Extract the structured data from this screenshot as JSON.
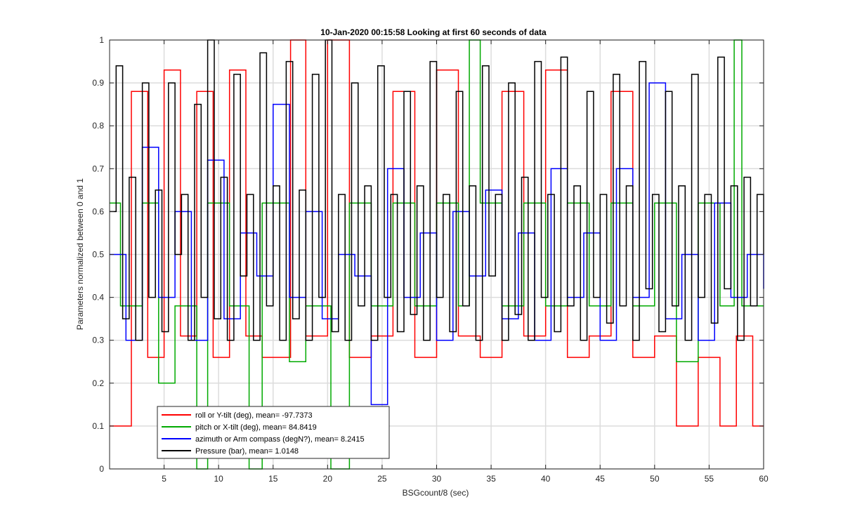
{
  "chart_data": {
    "type": "line",
    "title": "10-Jan-2020 00:15:58 Looking at first 60 seconds of data",
    "xlabel": "BSGcount/8 (sec)",
    "ylabel": "Parameters normalized between 0 and 1",
    "xlim": [
      0,
      60
    ],
    "ylim": [
      0,
      1
    ],
    "xticks": [
      5,
      10,
      15,
      20,
      25,
      30,
      35,
      40,
      45,
      50,
      55,
      60
    ],
    "yticks": [
      0,
      0.1,
      0.2,
      0.3,
      0.4,
      0.5,
      0.6,
      0.7,
      0.8,
      0.9,
      1
    ],
    "grid": true,
    "legend_position": "bottom-left",
    "series": [
      {
        "name": "roll or Y-tilt (deg), mean= -97.7373",
        "color": "#ff0000",
        "x": [
          0,
          2,
          3.5,
          5,
          6.5,
          8,
          9.5,
          11,
          12.5,
          14,
          16.6,
          18,
          20,
          22,
          24,
          26,
          28,
          30,
          32,
          34,
          36,
          38,
          40,
          42,
          44,
          46,
          48,
          50,
          52,
          54,
          56,
          57.5,
          59,
          60
        ],
        "values": [
          0.1,
          0.88,
          0.26,
          0.93,
          0.31,
          0.88,
          0.26,
          0.93,
          0.31,
          0.26,
          1.0,
          0.31,
          1.0,
          0.26,
          0.31,
          0.88,
          0.26,
          0.93,
          0.31,
          0.26,
          0.88,
          0.31,
          0.93,
          0.26,
          0.31,
          0.88,
          0.26,
          0.31,
          0.1,
          0.26,
          0.1,
          0.31,
          0.1,
          0.1
        ]
      },
      {
        "name": "pitch or X-tilt (deg), mean= 84.8419",
        "color": "#00aa00",
        "x": [
          0,
          1,
          3,
          4.5,
          6,
          8,
          9,
          11,
          12.8,
          14,
          16.5,
          18,
          20.3,
          22,
          24,
          26,
          28,
          30,
          32,
          33,
          34,
          36,
          38,
          40,
          42,
          44,
          46,
          48,
          50,
          52,
          54,
          56,
          57.3,
          58,
          60
        ],
        "values": [
          0.62,
          0.38,
          0.62,
          0.2,
          0.38,
          0.0,
          0.62,
          0.38,
          0.0,
          0.62,
          0.25,
          0.38,
          0.0,
          0.62,
          0.38,
          0.62,
          0.38,
          0.62,
          0.38,
          1.0,
          0.62,
          0.38,
          0.62,
          0.38,
          0.62,
          0.38,
          0.62,
          0.38,
          0.62,
          0.25,
          0.62,
          0.38,
          1.0,
          0.38,
          0.38
        ]
      },
      {
        "name": "azimuth or Arm compass (degN?), mean= 8.2415",
        "color": "#0000ff",
        "x": [
          0,
          1.5,
          3,
          4.5,
          6,
          7.5,
          9,
          10.5,
          12,
          13.5,
          15,
          16.5,
          18,
          19.5,
          21,
          22.5,
          24,
          25.5,
          27,
          28.5,
          30,
          31.5,
          33,
          34.5,
          36,
          37.5,
          39,
          40.5,
          42,
          43.5,
          45,
          46.5,
          48,
          49.5,
          51,
          52.5,
          54,
          55.5,
          57,
          58.5,
          60
        ],
        "values": [
          0.5,
          0.3,
          0.75,
          0.4,
          0.6,
          0.3,
          0.72,
          0.35,
          0.55,
          0.45,
          0.85,
          0.4,
          0.6,
          0.35,
          0.5,
          0.45,
          0.15,
          0.7,
          0.4,
          0.55,
          0.3,
          0.6,
          0.45,
          0.65,
          0.35,
          0.55,
          0.3,
          0.7,
          0.4,
          0.55,
          0.3,
          0.7,
          0.4,
          0.9,
          0.35,
          0.5,
          0.3,
          0.62,
          0.4,
          0.5,
          0.42
        ]
      },
      {
        "name": "Pressure (bar), mean= 1.0148",
        "color": "#000000",
        "x": [
          0,
          0.6,
          1.2,
          1.8,
          2.4,
          3,
          3.6,
          4.2,
          4.8,
          5.4,
          6,
          6.6,
          7.2,
          7.8,
          8.4,
          9,
          9.6,
          10.2,
          10.8,
          11.4,
          12,
          12.6,
          13.2,
          13.8,
          14.4,
          15,
          15.6,
          16.2,
          16.8,
          17.4,
          18,
          18.6,
          19.2,
          19.8,
          20.4,
          21,
          21.6,
          22.2,
          22.8,
          23.4,
          24,
          24.6,
          25.2,
          25.8,
          26.4,
          27,
          27.6,
          28.2,
          28.8,
          29.4,
          30,
          30.6,
          31.2,
          31.8,
          32.4,
          33,
          33.6,
          34.2,
          34.8,
          35.4,
          36,
          36.6,
          37.2,
          37.8,
          38.4,
          39,
          39.6,
          40.2,
          40.8,
          41.4,
          42,
          42.6,
          43.2,
          43.8,
          44.4,
          45,
          45.6,
          46.2,
          46.8,
          47.4,
          48,
          48.6,
          49.2,
          49.8,
          50.4,
          51,
          51.6,
          52.2,
          52.8,
          53.4,
          54,
          54.6,
          55.2,
          55.8,
          56.4,
          57,
          57.6,
          58.2,
          58.8,
          59.4,
          60
        ],
        "values": [
          0.6,
          0.94,
          0.35,
          0.68,
          0.3,
          0.9,
          0.4,
          0.65,
          0.32,
          0.9,
          0.5,
          0.64,
          0.3,
          0.85,
          0.4,
          1.0,
          0.35,
          0.68,
          0.3,
          0.92,
          0.45,
          0.64,
          0.3,
          0.97,
          0.38,
          0.66,
          0.3,
          0.95,
          0.35,
          0.65,
          0.3,
          0.92,
          0.4,
          1.0,
          0.32,
          0.64,
          0.3,
          0.9,
          0.38,
          0.66,
          0.3,
          0.94,
          0.4,
          0.64,
          0.32,
          0.88,
          0.36,
          0.66,
          0.3,
          0.95,
          0.4,
          0.64,
          0.32,
          0.88,
          0.38,
          0.66,
          0.3,
          0.94,
          0.45,
          0.64,
          0.3,
          0.9,
          0.36,
          0.68,
          0.3,
          0.95,
          0.4,
          0.64,
          0.32,
          0.96,
          0.38,
          0.66,
          0.3,
          0.88,
          0.4,
          0.64,
          0.34,
          0.92,
          0.38,
          0.66,
          0.3,
          0.95,
          0.42,
          0.64,
          0.32,
          0.88,
          0.38,
          0.66,
          0.3,
          0.92,
          0.4,
          0.64,
          0.34,
          0.96,
          0.42,
          0.66,
          0.3,
          0.68,
          0.38,
          0.64,
          0.5
        ]
      }
    ]
  }
}
